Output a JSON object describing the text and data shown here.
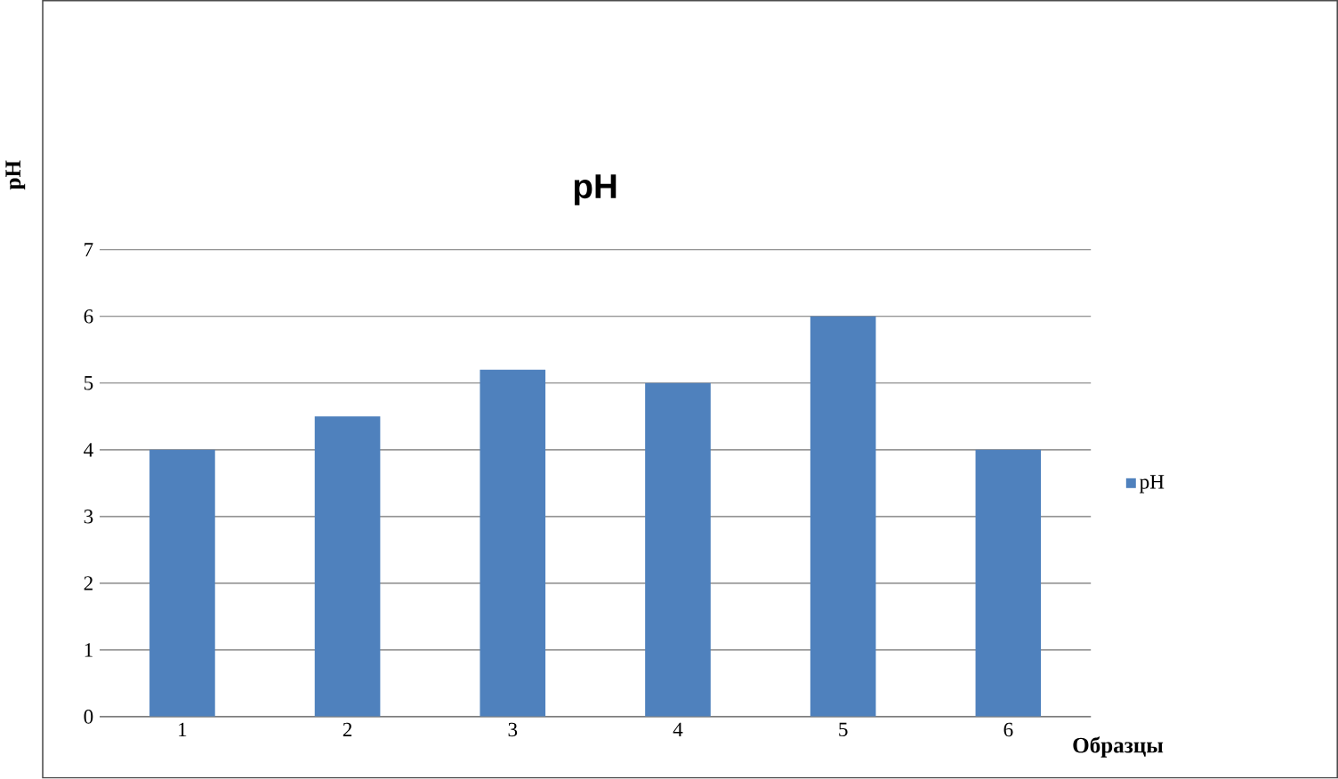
{
  "chart_data": {
    "type": "bar",
    "title": "pH",
    "xlabel": "Образцы",
    "ylabel": "pH",
    "categories": [
      "1",
      "2",
      "3",
      "4",
      "5",
      "6"
    ],
    "series": [
      {
        "name": "pH",
        "color": "#4f81bd",
        "values": [
          4,
          4.5,
          5.2,
          5,
          6,
          4
        ]
      }
    ],
    "ylim": [
      0,
      7
    ],
    "yticks": [
      0,
      1,
      2,
      3,
      4,
      5,
      6,
      7
    ],
    "grid": "y",
    "legend": "right"
  }
}
